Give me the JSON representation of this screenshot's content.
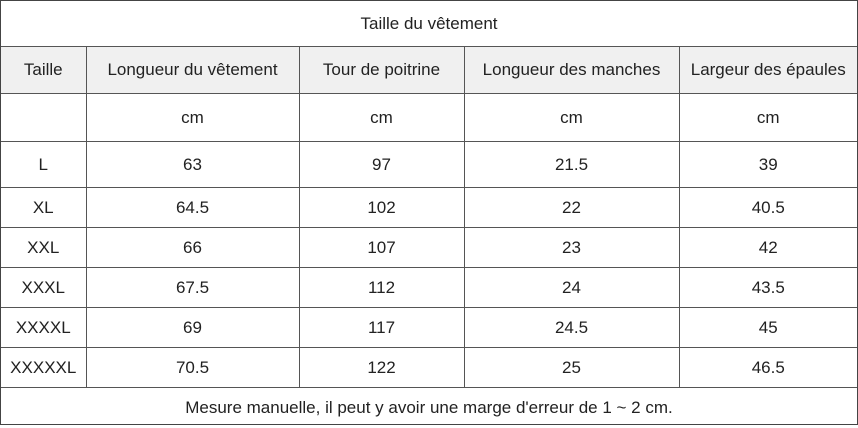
{
  "title": "Taille du vêtement",
  "columns": [
    "Taille",
    "Longueur du vêtement",
    "Tour de poitrine",
    "Longueur des manches",
    "Largeur des épaules"
  ],
  "units": [
    "",
    "cm",
    "cm",
    "cm",
    "cm"
  ],
  "rows": [
    [
      "L",
      "63",
      "97",
      "21.5",
      "39"
    ],
    [
      "XL",
      "64.5",
      "102",
      "22",
      "40.5"
    ],
    [
      "XXL",
      "66",
      "107",
      "23",
      "42"
    ],
    [
      "XXXL",
      "67.5",
      "112",
      "24",
      "43.5"
    ],
    [
      "XXXXL",
      "69",
      "117",
      "24.5",
      "45"
    ],
    [
      "XXXXXL",
      "70.5",
      "122",
      "25",
      "46.5"
    ]
  ],
  "note": "Mesure manuelle, il peut y avoir une marge d'erreur de 1 ~ 2 cm."
}
